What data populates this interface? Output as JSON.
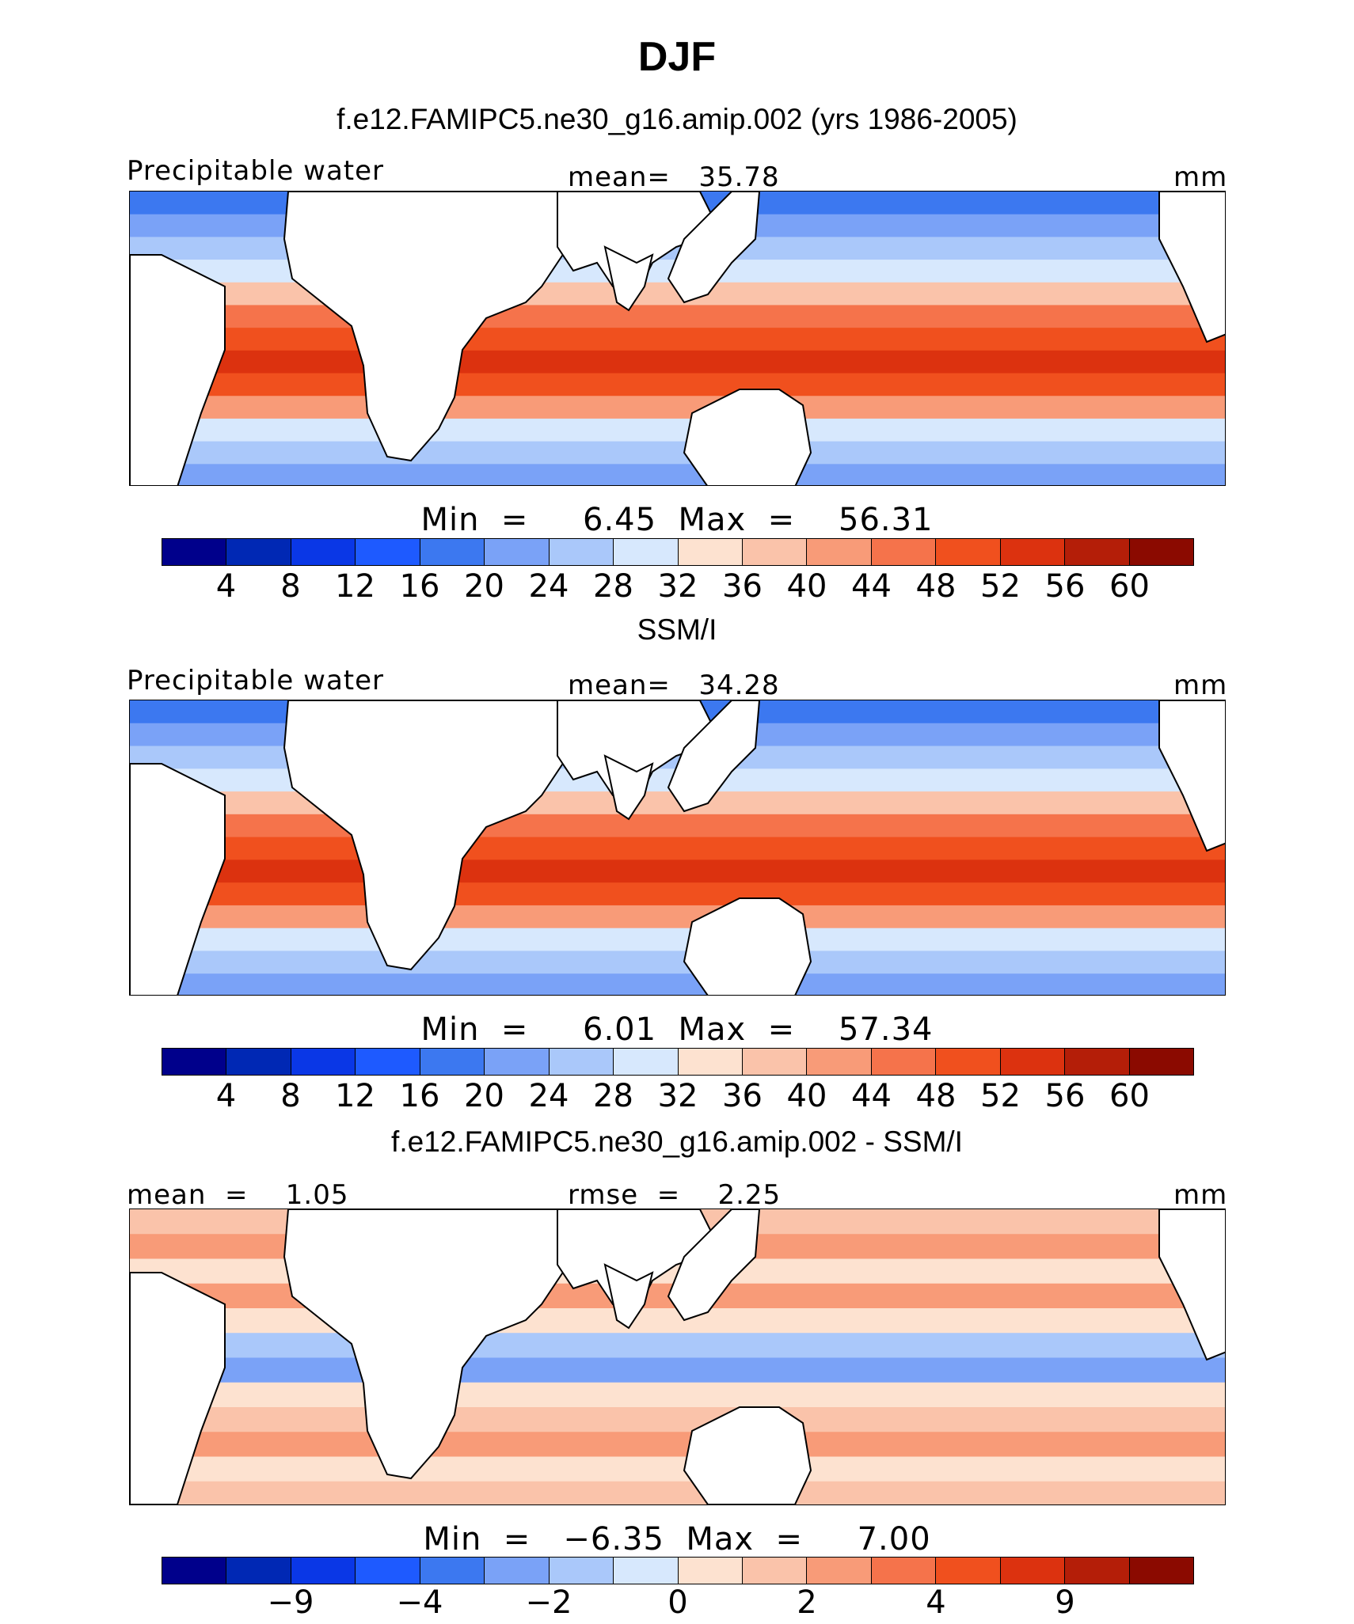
{
  "title": "DJF",
  "panels": [
    {
      "title": "f.e12.FAMIPC5.ne30_g16.amip.002 (yrs 1986-2005)",
      "left_label": "Precipitable water",
      "center_label": "mean=   35.78",
      "units": "mm",
      "minmax": "Min  =     6.45  Max  =    56.31",
      "type": "absolute"
    },
    {
      "title": "SSM/I",
      "left_label": "Precipitable water",
      "center_label": "mean=   34.28",
      "units": "mm",
      "minmax": "Min  =     6.01  Max  =    57.34",
      "type": "absolute"
    },
    {
      "title": "f.e12.FAMIPC5.ne30_g16.amip.002 - SSM/I",
      "left_label": "mean  =    1.05",
      "center_label": "rmse  =    2.25",
      "units": "mm",
      "minmax": "Min  =   −6.35  Max  =     7.00",
      "type": "difference"
    }
  ],
  "colorbars": {
    "absolute": {
      "colors": [
        "#00008b",
        "#0028b4",
        "#0a37e6",
        "#1e5aff",
        "#3c78f0",
        "#7aa2f7",
        "#aac8fa",
        "#d7e8fd",
        "#fde2d0",
        "#fac3aa",
        "#f89b78",
        "#f5734b",
        "#f0501e",
        "#dc320f",
        "#b41e08",
        "#8b0a00"
      ],
      "ticks": [
        "4",
        "8",
        "12",
        "16",
        "20",
        "24",
        "28",
        "32",
        "36",
        "40",
        "44",
        "48",
        "52",
        "56",
        "60"
      ]
    },
    "difference": {
      "colors": [
        "#00008b",
        "#0028b4",
        "#0a37e6",
        "#1e5aff",
        "#3c78f0",
        "#7aa2f7",
        "#aac8fa",
        "#d7e8fd",
        "#fde2d0",
        "#fac3aa",
        "#f89b78",
        "#f5734b",
        "#f0501e",
        "#dc320f",
        "#b41e08",
        "#8b0a00"
      ],
      "ticks": [
        "−9",
        "−4",
        "−2",
        "0",
        "2",
        "4",
        "9"
      ],
      "tick_positions": [
        2,
        4,
        6,
        8,
        10,
        12,
        14
      ]
    }
  },
  "fields": {
    "ocean_bands_absolute": [
      "#3c78f0",
      "#7aa2f7",
      "#aac8fa",
      "#d7e8fd",
      "#fac3aa",
      "#f5734b",
      "#f0501e",
      "#dc320f",
      "#f0501e",
      "#f89b78",
      "#d7e8fd",
      "#aac8fa",
      "#7aa2f7"
    ],
    "ocean_bands_difference": [
      "#fac3aa",
      "#f89b78",
      "#fde2d0",
      "#f89b78",
      "#fde2d0",
      "#aac8fa",
      "#7aa2f7",
      "#fde2d0",
      "#fac3aa",
      "#f89b78",
      "#fde2d0",
      "#fac3aa"
    ]
  }
}
